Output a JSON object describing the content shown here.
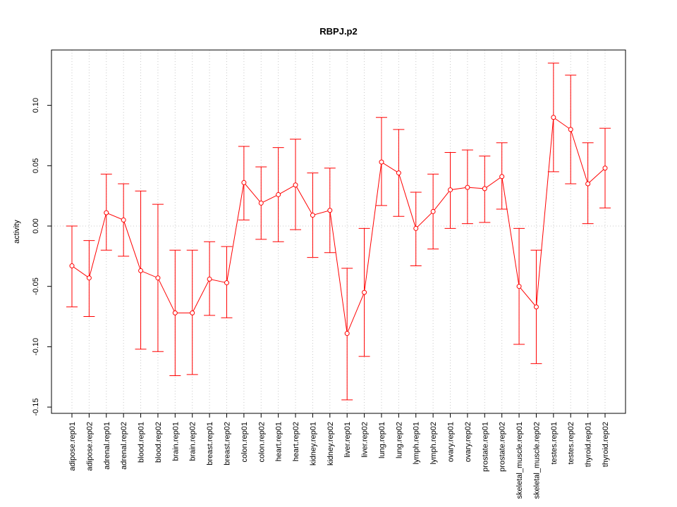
{
  "chart_data": {
    "type": "line",
    "title": "RBPJ.p2",
    "xlabel": "",
    "ylabel": "activity",
    "ylim": [
      -0.155,
      0.147
    ],
    "y_ticks": [
      -0.15,
      -0.1,
      -0.05,
      0.0,
      0.05,
      0.1
    ],
    "y_tick_labels": [
      "-0.15",
      "-0.10",
      "-0.05",
      "0.00",
      "0.05",
      "0.10"
    ],
    "grid": true,
    "color": "#ff0000",
    "categories": [
      "adipose.rep01",
      "adipose.rep02",
      "adrenal.rep01",
      "adrenal.rep02",
      "blood.rep01",
      "blood.rep02",
      "brain.rep01",
      "brain.rep02",
      "breast.rep01",
      "breast.rep02",
      "colon.rep01",
      "colon.rep02",
      "heart.rep01",
      "heart.rep02",
      "kidney.rep01",
      "kidney.rep02",
      "liver.rep01",
      "liver.rep02",
      "lung.rep01",
      "lung.rep02",
      "lymph.rep01",
      "lymph.rep02",
      "ovary.rep01",
      "ovary.rep02",
      "prostate.rep01",
      "prostate.rep02",
      "skeletal_muscle.rep01",
      "skeletal_muscle.rep02",
      "testes.rep01",
      "testes.rep02",
      "thyroid.rep01",
      "thyroid.rep02"
    ],
    "values": [
      -0.033,
      -0.043,
      0.011,
      0.005,
      -0.037,
      -0.043,
      -0.072,
      -0.072,
      -0.044,
      -0.047,
      0.036,
      0.019,
      0.026,
      0.034,
      0.009,
      0.013,
      -0.089,
      -0.055,
      0.053,
      0.044,
      -0.002,
      0.012,
      0.03,
      0.032,
      0.031,
      0.041,
      -0.05,
      -0.067,
      0.09,
      0.08,
      0.035,
      0.048
    ],
    "lower": [
      -0.067,
      -0.075,
      -0.02,
      -0.025,
      -0.102,
      -0.104,
      -0.124,
      -0.123,
      -0.074,
      -0.076,
      0.005,
      -0.011,
      -0.013,
      -0.003,
      -0.026,
      -0.022,
      -0.144,
      -0.108,
      0.017,
      0.008,
      -0.033,
      -0.019,
      -0.002,
      0.002,
      0.003,
      0.014,
      -0.098,
      -0.114,
      0.045,
      0.035,
      0.002,
      0.015
    ],
    "upper": [
      0.0,
      -0.012,
      0.043,
      0.035,
      0.029,
      0.018,
      -0.02,
      -0.02,
      -0.013,
      -0.017,
      0.066,
      0.049,
      0.065,
      0.072,
      0.044,
      0.048,
      -0.035,
      -0.002,
      0.09,
      0.08,
      0.028,
      0.043,
      0.061,
      0.063,
      0.058,
      0.069,
      -0.002,
      -0.02,
      0.135,
      0.125,
      0.069,
      0.081
    ]
  }
}
